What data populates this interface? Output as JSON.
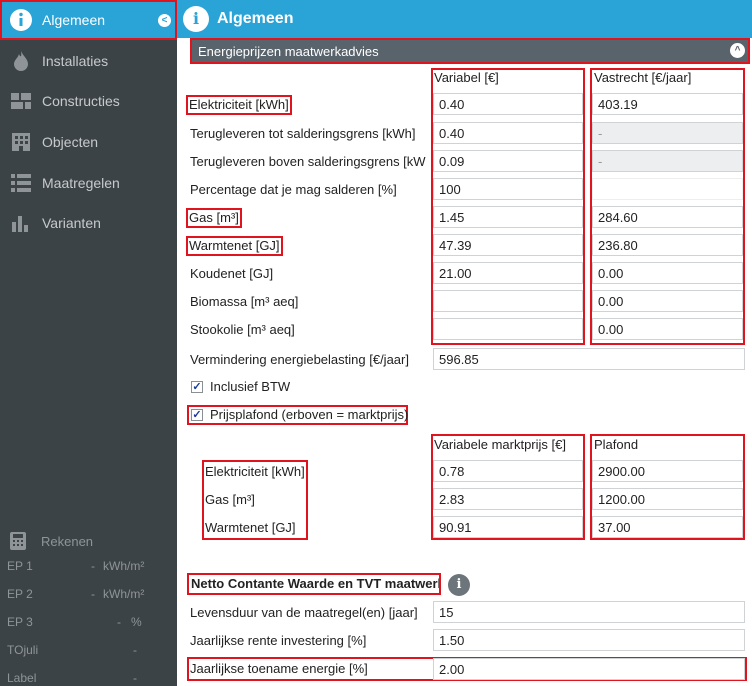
{
  "sidebar": {
    "items": [
      {
        "label": "Algemeen",
        "icon": "info-icon"
      },
      {
        "label": "Installaties",
        "icon": "flame-icon"
      },
      {
        "label": "Constructies",
        "icon": "constructions-icon"
      },
      {
        "label": "Objecten",
        "icon": "building-icon"
      },
      {
        "label": "Maatregelen",
        "icon": "list-icon"
      },
      {
        "label": "Varianten",
        "icon": "bar-chart-icon"
      }
    ],
    "calc_label": "Rekenen",
    "stats": [
      {
        "name": "EP 1",
        "value": "-",
        "unit": "kWh/m²"
      },
      {
        "name": "EP 2",
        "value": "-",
        "unit": "kWh/m²"
      },
      {
        "name": "EP 3",
        "value": "-",
        "unit": "%"
      },
      {
        "name": "TOjuli",
        "value": "-",
        "unit": ""
      },
      {
        "name": "Label",
        "value": "-",
        "unit": ""
      }
    ]
  },
  "header": {
    "title": "Algemeen"
  },
  "section": {
    "title": "Energieprijzen maatwerkadvies"
  },
  "prices": {
    "col_variable": "Variabel [€]",
    "col_fixed": "Vastrecht [€/jaar]",
    "rows": [
      {
        "label": "Elektriciteit [kWh]",
        "variable": "0.40",
        "fixed": "403.19"
      },
      {
        "label": "Terugleveren tot salderingsgrens [kWh]",
        "variable": "0.40",
        "fixed": "-"
      },
      {
        "label": "Terugleveren boven salderingsgrens [kWh",
        "variable": "0.09",
        "fixed": "-"
      },
      {
        "label": "Percentage dat je mag salderen [%]",
        "variable": "100",
        "fixed": ""
      },
      {
        "label": "Gas [m³]",
        "variable": "1.45",
        "fixed": "284.60"
      },
      {
        "label": "Warmtenet [GJ]",
        "variable": "47.39",
        "fixed": "236.80"
      },
      {
        "label": "Koudenet [GJ]",
        "variable": "21.00",
        "fixed": "0.00"
      },
      {
        "label": "Biomassa [m³ aeq]",
        "variable": "",
        "fixed": "0.00"
      },
      {
        "label": "Stookolie [m³ aeq]",
        "variable": "",
        "fixed": "0.00"
      }
    ],
    "tax_label": "Vermindering energiebelasting [€/jaar]",
    "tax_value": "596.85",
    "btw_label": "Inclusief BTW",
    "btw_check": "✓",
    "cap_label": "Prijsplafond (erboven = marktprijs)",
    "cap_check": "✓"
  },
  "cap": {
    "col_market": "Variabele marktprijs [€]",
    "col_ceiling": "Plafond",
    "rows": [
      {
        "label": "Elektriciteit [kWh]",
        "market": "0.78",
        "ceiling": "2900.00"
      },
      {
        "label": "Gas [m³]",
        "market": "2.83",
        "ceiling": "1200.00"
      },
      {
        "label": "Warmtenet [GJ]",
        "market": "90.91",
        "ceiling": "37.00"
      }
    ]
  },
  "npv": {
    "title": "Netto Contante Waarde en TVT maatwerl",
    "info": "i",
    "rows": [
      {
        "label": "Levensduur van de maatregel(en) [jaar]",
        "value": "15"
      },
      {
        "label": "Jaarlijkse rente investering [%]",
        "value": "1.50"
      },
      {
        "label": "Jaarlijkse toename energie [%]",
        "value": "2.00"
      }
    ]
  },
  "colors": {
    "accent": "#2aa3d6",
    "sidebar": "#3c4347",
    "highlight": "#e0141e"
  }
}
